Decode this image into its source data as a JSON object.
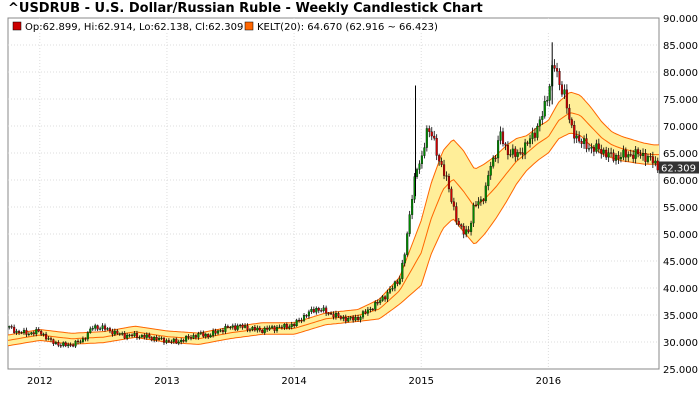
{
  "chart_data": {
    "type": "candlestick",
    "title": "^USDRUB - U.S. Dollar/Russian Ruble - Weekly Candlestick Chart",
    "legend": [
      {
        "label": "Op:62.899, Hi:62.914, Lo:62.138, Cl:62.309",
        "color": "#cc0000"
      },
      {
        "label": "KELT(20): 64.670 (62.916 ~ 66.423)",
        "color": "#ff6600"
      }
    ],
    "x_ticks": [
      "2012",
      "2013",
      "2014",
      "2015",
      "2016"
    ],
    "x_tick_values": [
      2012.0,
      2013.0,
      2014.0,
      2015.0,
      2016.0
    ],
    "xlim": [
      2011.75,
      2016.87
    ],
    "y_ticks": [
      "25.000",
      "30.000",
      "35.000",
      "40.000",
      "45.000",
      "50.000",
      "55.000",
      "60.000",
      "65.000",
      "70.000",
      "75.000",
      "80.000",
      "85.000",
      "90.000"
    ],
    "ylim": [
      25,
      90
    ],
    "last_close_label": "62.309",
    "last_close": 62.309,
    "colors": {
      "up": "#008800",
      "down": "#cc0000",
      "band_fill": "#ffee99",
      "band_line": "#ff6600",
      "grid": "#dddddd"
    },
    "close_series": [
      [
        2011.75,
        32.8
      ],
      [
        2011.83,
        31.8
      ],
      [
        2011.92,
        31.6
      ],
      [
        2012.0,
        32.0
      ],
      [
        2012.08,
        30.2
      ],
      [
        2012.17,
        29.4
      ],
      [
        2012.25,
        29.5
      ],
      [
        2012.33,
        30.2
      ],
      [
        2012.42,
        32.8
      ],
      [
        2012.5,
        32.6
      ],
      [
        2012.58,
        31.8
      ],
      [
        2012.67,
        31.2
      ],
      [
        2012.75,
        31.2
      ],
      [
        2012.83,
        31.0
      ],
      [
        2012.92,
        30.6
      ],
      [
        2013.0,
        30.2
      ],
      [
        2013.08,
        30.0
      ],
      [
        2013.17,
        30.8
      ],
      [
        2013.25,
        31.4
      ],
      [
        2013.33,
        31.2
      ],
      [
        2013.42,
        32.2
      ],
      [
        2013.5,
        32.8
      ],
      [
        2013.58,
        32.9
      ],
      [
        2013.67,
        32.4
      ],
      [
        2013.75,
        32.2
      ],
      [
        2013.83,
        32.6
      ],
      [
        2013.92,
        32.8
      ],
      [
        2014.0,
        33.2
      ],
      [
        2014.08,
        34.8
      ],
      [
        2014.17,
        36.2
      ],
      [
        2014.25,
        35.6
      ],
      [
        2014.33,
        34.8
      ],
      [
        2014.42,
        34.2
      ],
      [
        2014.5,
        34.4
      ],
      [
        2014.58,
        35.8
      ],
      [
        2014.67,
        37.5
      ],
      [
        2014.75,
        39.4
      ],
      [
        2014.83,
        41.8
      ],
      [
        2014.88,
        47.5
      ],
      [
        2014.92,
        56.0
      ],
      [
        2014.96,
        62.0
      ],
      [
        2015.0,
        63.0
      ],
      [
        2015.04,
        69.5
      ],
      [
        2015.08,
        68.5
      ],
      [
        2015.13,
        64.5
      ],
      [
        2015.17,
        62.0
      ],
      [
        2015.21,
        59.0
      ],
      [
        2015.25,
        55.5
      ],
      [
        2015.29,
        51.5
      ],
      [
        2015.33,
        50.5
      ],
      [
        2015.38,
        50.8
      ],
      [
        2015.42,
        55.5
      ],
      [
        2015.5,
        57.0
      ],
      [
        2015.54,
        62.5
      ],
      [
        2015.58,
        64.5
      ],
      [
        2015.62,
        68.5
      ],
      [
        2015.67,
        65.5
      ],
      [
        2015.75,
        64.5
      ],
      [
        2015.83,
        66.5
      ],
      [
        2015.92,
        70.0
      ],
      [
        2015.96,
        72.5
      ],
      [
        2016.0,
        76.5
      ],
      [
        2016.04,
        82.0
      ],
      [
        2016.08,
        78.0
      ],
      [
        2016.13,
        76.0
      ],
      [
        2016.17,
        70.0
      ],
      [
        2016.25,
        67.0
      ],
      [
        2016.33,
        66.0
      ],
      [
        2016.42,
        65.5
      ],
      [
        2016.5,
        64.2
      ],
      [
        2016.58,
        64.5
      ],
      [
        2016.67,
        64.8
      ],
      [
        2016.75,
        64.6
      ],
      [
        2016.82,
        63.5
      ],
      [
        2016.87,
        62.3
      ]
    ],
    "kelt_mid": [
      [
        2011.75,
        30.3
      ],
      [
        2012.0,
        31.3
      ],
      [
        2012.25,
        30.6
      ],
      [
        2012.5,
        30.9
      ],
      [
        2012.75,
        31.9
      ],
      [
        2013.0,
        31.0
      ],
      [
        2013.25,
        30.6
      ],
      [
        2013.5,
        31.7
      ],
      [
        2013.75,
        32.5
      ],
      [
        2014.0,
        32.5
      ],
      [
        2014.25,
        34.3
      ],
      [
        2014.5,
        34.9
      ],
      [
        2014.67,
        36.1
      ],
      [
        2014.83,
        39.5
      ],
      [
        2015.0,
        46.5
      ],
      [
        2015.08,
        53.0
      ],
      [
        2015.17,
        58.2
      ],
      [
        2015.25,
        60.2
      ],
      [
        2015.33,
        58.0
      ],
      [
        2015.42,
        55.0
      ],
      [
        2015.5,
        56.5
      ],
      [
        2015.58,
        58.5
      ],
      [
        2015.67,
        61.2
      ],
      [
        2015.75,
        63.5
      ],
      [
        2015.83,
        65.0
      ],
      [
        2015.92,
        66.8
      ],
      [
        2016.0,
        68.0
      ],
      [
        2016.08,
        71.0
      ],
      [
        2016.17,
        72.5
      ],
      [
        2016.25,
        72.0
      ],
      [
        2016.33,
        70.0
      ],
      [
        2016.42,
        67.8
      ],
      [
        2016.5,
        66.5
      ],
      [
        2016.58,
        65.8
      ],
      [
        2016.67,
        65.3
      ],
      [
        2016.75,
        64.9
      ],
      [
        2016.83,
        64.7
      ]
    ],
    "kelt_width": [
      [
        2011.75,
        1.0
      ],
      [
        2014.5,
        1.1
      ],
      [
        2014.83,
        2.5
      ],
      [
        2015.0,
        6.0
      ],
      [
        2015.17,
        7.2
      ],
      [
        2015.33,
        7.5
      ],
      [
        2015.5,
        6.5
      ],
      [
        2015.67,
        5.2
      ],
      [
        2015.83,
        3.2
      ],
      [
        2016.0,
        3.0
      ],
      [
        2016.17,
        3.8
      ],
      [
        2016.33,
        3.6
      ],
      [
        2016.5,
        2.4
      ],
      [
        2016.83,
        1.8
      ]
    ]
  }
}
